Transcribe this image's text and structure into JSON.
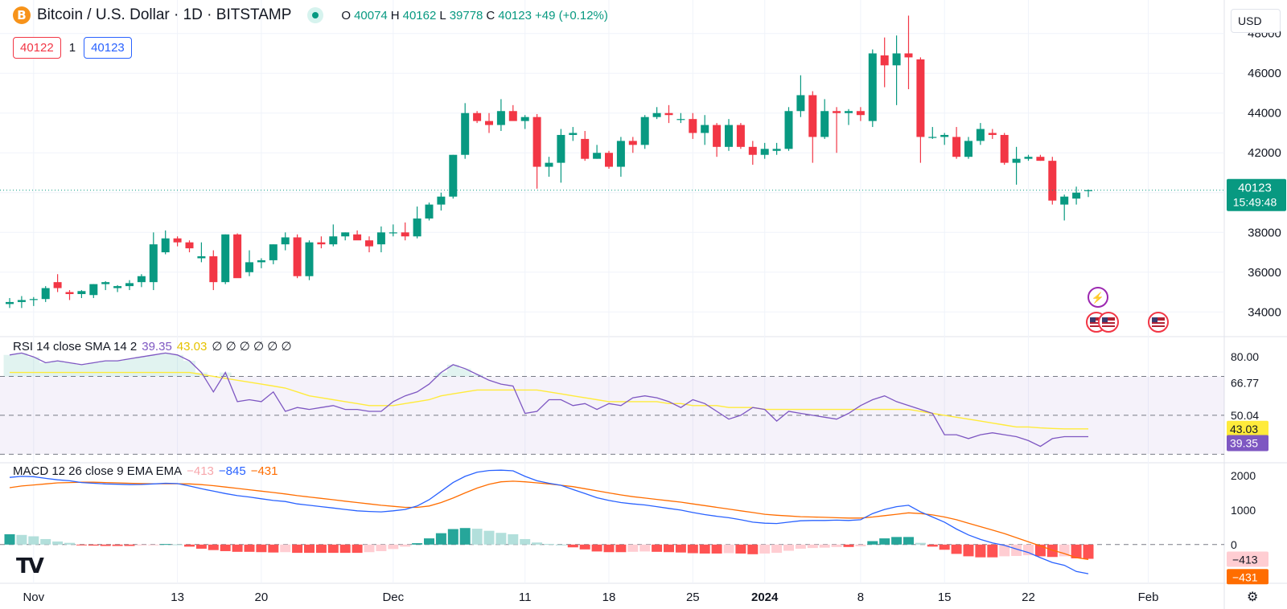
{
  "header": {
    "symbol_icon": "B",
    "title": "Bitcoin / U.S. Dollar · 1D · BITSTAMP",
    "ohlc": [
      {
        "k": "O",
        "v": "40074"
      },
      {
        "k": "H",
        "v": "40162"
      },
      {
        "k": "L",
        "v": "39778"
      },
      {
        "k": "C",
        "v": "40123"
      },
      {
        "k": "",
        "v": "+49 (+0.12%)"
      }
    ],
    "sell_price": "40122",
    "spread": "1",
    "buy_price": "40123"
  },
  "currency": "USD",
  "price_label": "40123",
  "countdown": "15:49:48",
  "rsi_legend": {
    "name": "RSI 14 close SMA 14 2",
    "v1": "39.35",
    "v2": "43.03",
    "rest": "∅ ∅ ∅ ∅ ∅ ∅"
  },
  "macd_legend": {
    "name": "MACD 12 26 close 9 EMA EMA",
    "v1": "−413",
    "v2": "−845",
    "v3": "−431"
  },
  "colors": {
    "up": "#089981",
    "down": "#f23645",
    "rsi": "#7e57c2",
    "rsi_ma": "#ffeb3b",
    "macd": "#2962ff",
    "signal": "#ff6d00"
  },
  "chart_data": [
    {
      "type": "candlestick",
      "title": "Bitcoin / U.S. Dollar · 1D · BITSTAMP",
      "ylim": [
        32800,
        49200
      ],
      "yticks": [
        34000,
        36000,
        38000,
        40000,
        42000,
        44000,
        46000,
        48000
      ],
      "xticks": [
        {
          "label": "Nov",
          "index": 2
        },
        {
          "label": "13",
          "index": 14
        },
        {
          "label": "20",
          "index": 21
        },
        {
          "label": "Dec",
          "index": 32
        },
        {
          "label": "11",
          "index": 43
        },
        {
          "label": "18",
          "index": 50
        },
        {
          "label": "25",
          "index": 57
        },
        {
          "label": "2024",
          "index": 63
        },
        {
          "label": "8",
          "index": 71
        },
        {
          "label": "15",
          "index": 78
        },
        {
          "label": "22",
          "index": 85
        },
        {
          "label": "Feb",
          "index": 95
        }
      ],
      "candles": [
        [
          34400,
          34700,
          34200,
          34500
        ],
        [
          34500,
          34800,
          34200,
          34600
        ],
        [
          34600,
          34750,
          34300,
          34650
        ],
        [
          34650,
          35300,
          34500,
          35200
        ],
        [
          35500,
          35900,
          35000,
          35200
        ],
        [
          35000,
          35100,
          34600,
          34900
        ],
        [
          34900,
          35100,
          34700,
          35050
        ],
        [
          34850,
          35400,
          34700,
          35400
        ],
        [
          35400,
          35550,
          35100,
          35500
        ],
        [
          35200,
          35350,
          35000,
          35300
        ],
        [
          35300,
          35600,
          35100,
          35450
        ],
        [
          35500,
          35900,
          35250,
          35800
        ],
        [
          35500,
          38000,
          35100,
          37400
        ],
        [
          37000,
          38100,
          36900,
          37700
        ],
        [
          37700,
          37800,
          37300,
          37500
        ],
        [
          37500,
          37600,
          37000,
          37200
        ],
        [
          36700,
          37500,
          36500,
          36800
        ],
        [
          36800,
          37100,
          35100,
          35500
        ],
        [
          35500,
          37900,
          35400,
          37900
        ],
        [
          37900,
          37950,
          35800,
          35700
        ],
        [
          36000,
          37100,
          35800,
          36500
        ],
        [
          36500,
          36700,
          36200,
          36600
        ],
        [
          36600,
          37400,
          36400,
          37400
        ],
        [
          37400,
          38000,
          37100,
          37750
        ],
        [
          37750,
          37900,
          35700,
          35800
        ],
        [
          35800,
          37600,
          35600,
          37500
        ],
        [
          37500,
          37800,
          37200,
          37400
        ],
        [
          37400,
          38400,
          37300,
          37800
        ],
        [
          37800,
          38000,
          37600,
          38000
        ],
        [
          37900,
          38100,
          37700,
          37600
        ],
        [
          37600,
          37800,
          37000,
          37300
        ],
        [
          37400,
          38300,
          37000,
          38000
        ],
        [
          38000,
          38400,
          37800,
          38000
        ],
        [
          38000,
          38500,
          37600,
          37800
        ],
        [
          37800,
          39300,
          37700,
          38700
        ],
        [
          38700,
          39500,
          38600,
          39400
        ],
        [
          39400,
          40000,
          39100,
          39800
        ],
        [
          39800,
          41900,
          39700,
          41900
        ],
        [
          41900,
          44500,
          41700,
          44000
        ],
        [
          44000,
          44100,
          43500,
          43600
        ],
        [
          43600,
          44000,
          43000,
          43400
        ],
        [
          43400,
          44700,
          43100,
          44100
        ],
        [
          44100,
          44400,
          43700,
          43600
        ],
        [
          43600,
          43900,
          43200,
          43800
        ],
        [
          43800,
          43950,
          40200,
          41300
        ],
        [
          41300,
          41800,
          40800,
          41500
        ],
        [
          41500,
          43200,
          40500,
          42900
        ],
        [
          42900,
          43300,
          42600,
          43000
        ],
        [
          42700,
          43100,
          41600,
          41700
        ],
        [
          41700,
          42400,
          41700,
          42000
        ],
        [
          42000,
          42100,
          41200,
          41300
        ],
        [
          41300,
          42800,
          40800,
          42600
        ],
        [
          42600,
          42800,
          42000,
          42400
        ],
        [
          42400,
          43900,
          42200,
          43800
        ],
        [
          43800,
          44300,
          43700,
          44000
        ],
        [
          44000,
          44400,
          43500,
          43900
        ],
        [
          43700,
          44000,
          43500,
          43700
        ],
        [
          43700,
          44000,
          42700,
          43000
        ],
        [
          43000,
          43900,
          42400,
          43400
        ],
        [
          43400,
          43500,
          41800,
          42300
        ],
        [
          42300,
          43700,
          42100,
          43400
        ],
        [
          43400,
          43500,
          42200,
          42300
        ],
        [
          42300,
          42600,
          41400,
          41900
        ],
        [
          41900,
          42500,
          41700,
          42200
        ],
        [
          42100,
          42500,
          41900,
          42200
        ],
        [
          42200,
          44300,
          42100,
          44100
        ],
        [
          44100,
          45900,
          43800,
          44900
        ],
        [
          44900,
          45100,
          41500,
          42800
        ],
        [
          42800,
          44700,
          42700,
          44100
        ],
        [
          44100,
          44300,
          42000,
          44000
        ],
        [
          44000,
          44200,
          43400,
          44100
        ],
        [
          44100,
          44300,
          43600,
          43900
        ],
        [
          43600,
          47200,
          43300,
          47000
        ],
        [
          46900,
          47800,
          45300,
          46400
        ],
        [
          46400,
          47900,
          44400,
          47000
        ],
        [
          47000,
          48900,
          45200,
          46800
        ],
        [
          46700,
          46800,
          41500,
          42800
        ],
        [
          42800,
          43300,
          42700,
          42800
        ],
        [
          42800,
          43000,
          42400,
          42900
        ],
        [
          42800,
          43300,
          41700,
          41800
        ],
        [
          41800,
          42800,
          41700,
          42600
        ],
        [
          42600,
          43500,
          42400,
          43200
        ],
        [
          43000,
          43200,
          42700,
          42900
        ],
        [
          42900,
          43000,
          41400,
          41500
        ],
        [
          41500,
          42300,
          40400,
          41700
        ],
        [
          41700,
          41900,
          41600,
          41800
        ],
        [
          41800,
          41900,
          41600,
          41600
        ],
        [
          41600,
          41800,
          39400,
          39600
        ],
        [
          39400,
          39900,
          38600,
          39800
        ],
        [
          39700,
          40300,
          39400,
          40000
        ],
        [
          40074,
          40162,
          39778,
          40123
        ]
      ]
    },
    {
      "type": "line",
      "title": "RSI 14 close SMA 14 2",
      "ylim": [
        26,
        90
      ],
      "yticks": [
        80.0,
        66.77,
        50.04
      ],
      "levels": [
        70,
        50,
        30
      ],
      "series": [
        {
          "name": "RSI",
          "values": [
            81,
            82,
            80,
            77,
            78,
            77,
            76,
            77,
            78,
            78,
            79,
            80,
            81,
            82,
            81,
            78,
            72,
            62,
            72,
            57,
            58,
            57,
            62,
            52,
            54,
            53,
            54,
            55,
            53,
            53,
            52,
            52,
            57,
            60,
            62,
            66,
            72,
            76,
            74,
            71,
            68,
            66,
            65,
            51,
            52,
            58,
            58,
            55,
            56,
            53,
            56,
            55,
            59,
            60,
            59,
            57,
            54,
            58,
            56,
            52,
            48,
            50,
            54,
            53,
            47,
            52,
            51,
            50,
            49,
            48,
            51,
            55,
            58,
            60,
            57,
            55,
            53,
            51,
            40,
            40,
            38,
            40,
            41,
            40,
            39,
            37,
            34,
            38,
            39,
            39,
            39
          ]
        },
        {
          "name": "SMA",
          "values": [
            72,
            72,
            72,
            72,
            72,
            72,
            72,
            72,
            72,
            72,
            72,
            72,
            72,
            72,
            72,
            72,
            71,
            70,
            69,
            68,
            67,
            66,
            65,
            64,
            62,
            60,
            59,
            58,
            57,
            56,
            55,
            55,
            55,
            56,
            57,
            58,
            60,
            61,
            62,
            63,
            63,
            63,
            63,
            63,
            63,
            62,
            61,
            60,
            59,
            58,
            57,
            57,
            57,
            57,
            57,
            56,
            56,
            55,
            55,
            55,
            54,
            54,
            54,
            53,
            53,
            53,
            53,
            53,
            53,
            53,
            53,
            53,
            53,
            53,
            53,
            53,
            52,
            51,
            50,
            49,
            48,
            47,
            46,
            45,
            44,
            44,
            43.5,
            43.2,
            43.03,
            43.03,
            43.03
          ]
        }
      ]
    },
    {
      "type": "line",
      "title": "MACD 12 26 close 9 EMA EMA",
      "ylim": [
        -1100,
        2350
      ],
      "yticks": [
        2000,
        1000,
        0
      ],
      "series": [
        {
          "name": "MACD",
          "values": [
            1950,
            1980,
            1970,
            1920,
            1880,
            1850,
            1800,
            1780,
            1760,
            1750,
            1740,
            1745,
            1760,
            1780,
            1770,
            1700,
            1620,
            1550,
            1480,
            1420,
            1380,
            1330,
            1280,
            1250,
            1180,
            1140,
            1100,
            1060,
            1020,
            980,
            960,
            950,
            980,
            1020,
            1120,
            1300,
            1550,
            1800,
            1980,
            2100,
            2150,
            2160,
            2140,
            1980,
            1850,
            1780,
            1720,
            1600,
            1480,
            1360,
            1280,
            1220,
            1180,
            1150,
            1100,
            1050,
            1000,
            930,
            870,
            820,
            780,
            720,
            650,
            620,
            610,
            650,
            690,
            700,
            700,
            710,
            700,
            720,
            900,
            1020,
            1100,
            1140,
            950,
            800,
            650,
            450,
            280,
            150,
            50,
            -20,
            -130,
            -230,
            -380,
            -520,
            -600,
            -780,
            -845
          ]
        },
        {
          "name": "Signal",
          "values": [
            1650,
            1700,
            1730,
            1760,
            1790,
            1800,
            1810,
            1810,
            1800,
            1790,
            1780,
            1770,
            1765,
            1765,
            1765,
            1760,
            1740,
            1710,
            1670,
            1630,
            1590,
            1550,
            1510,
            1470,
            1420,
            1380,
            1340,
            1300,
            1260,
            1220,
            1180,
            1140,
            1110,
            1080,
            1080,
            1120,
            1220,
            1350,
            1500,
            1640,
            1750,
            1820,
            1840,
            1820,
            1790,
            1760,
            1720,
            1680,
            1620,
            1560,
            1500,
            1440,
            1390,
            1350,
            1310,
            1270,
            1230,
            1180,
            1130,
            1080,
            1030,
            980,
            930,
            880,
            850,
            830,
            810,
            800,
            790,
            780,
            770,
            770,
            800,
            840,
            880,
            920,
            900,
            860,
            800,
            720,
            620,
            520,
            420,
            320,
            200,
            80,
            -40,
            -160,
            -260,
            -380,
            -431
          ]
        },
        {
          "name": "Histogram",
          "values": [
            300,
            280,
            240,
            160,
            90,
            50,
            -10,
            -30,
            -40,
            -40,
            -40,
            -25,
            -5,
            15,
            5,
            -60,
            -120,
            -160,
            -190,
            -210,
            -210,
            -220,
            -230,
            -220,
            -240,
            -240,
            -240,
            -240,
            -240,
            -240,
            -220,
            -190,
            -130,
            -60,
            40,
            180,
            330,
            450,
            480,
            460,
            400,
            340,
            300,
            160,
            60,
            20,
            0,
            -80,
            -140,
            -200,
            -220,
            -220,
            -210,
            -200,
            -210,
            -220,
            -230,
            -250,
            -260,
            -260,
            -250,
            -260,
            -280,
            -260,
            -240,
            -180,
            -120,
            -100,
            -90,
            -70,
            -70,
            -50,
            100,
            180,
            220,
            220,
            50,
            -60,
            -150,
            -270,
            -340,
            -370,
            -370,
            -340,
            -330,
            -310,
            -340,
            -360,
            -340,
            -400,
            -413
          ]
        }
      ]
    }
  ]
}
